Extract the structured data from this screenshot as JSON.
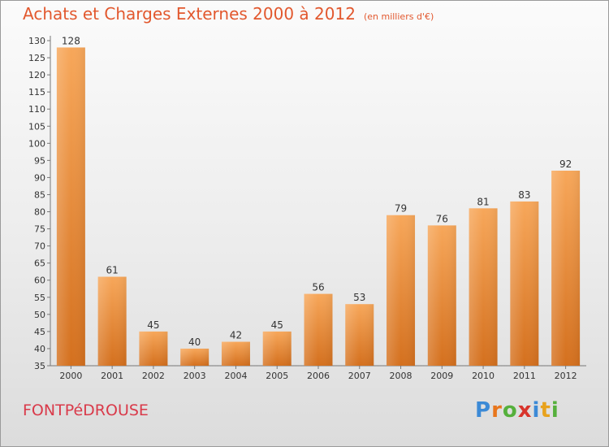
{
  "title": "Achats et Charges Externes 2000 à 2012",
  "unit": "(en milliers d'€)",
  "commune": "FONTPéDROUSE",
  "logo": {
    "letters": [
      "P",
      "r",
      "o",
      "x",
      "i",
      "t",
      "i"
    ],
    "colors": [
      "#3c8ad6",
      "#e8761c",
      "#55b03c",
      "#d8342c",
      "#3c8ad6",
      "#e8a21c",
      "#55b03c"
    ]
  },
  "colors": {
    "title": "#e2582e",
    "commune": "#d93a4a",
    "bar_light": "#f7a75a",
    "bar_dark": "#d4701e"
  },
  "chart_data": {
    "type": "bar",
    "title": "Achats et Charges Externes 2000 à 2012",
    "subtitle": "(en milliers d'€)",
    "categories": [
      "2000",
      "2001",
      "2002",
      "2003",
      "2004",
      "2005",
      "2006",
      "2007",
      "2008",
      "2009",
      "2010",
      "2011",
      "2012"
    ],
    "values": [
      128,
      61,
      45,
      40,
      42,
      45,
      56,
      53,
      79,
      76,
      81,
      83,
      92
    ],
    "ylim": [
      35,
      130
    ],
    "ytick_step": 5,
    "grid": false,
    "xlabel": "",
    "ylabel": ""
  }
}
